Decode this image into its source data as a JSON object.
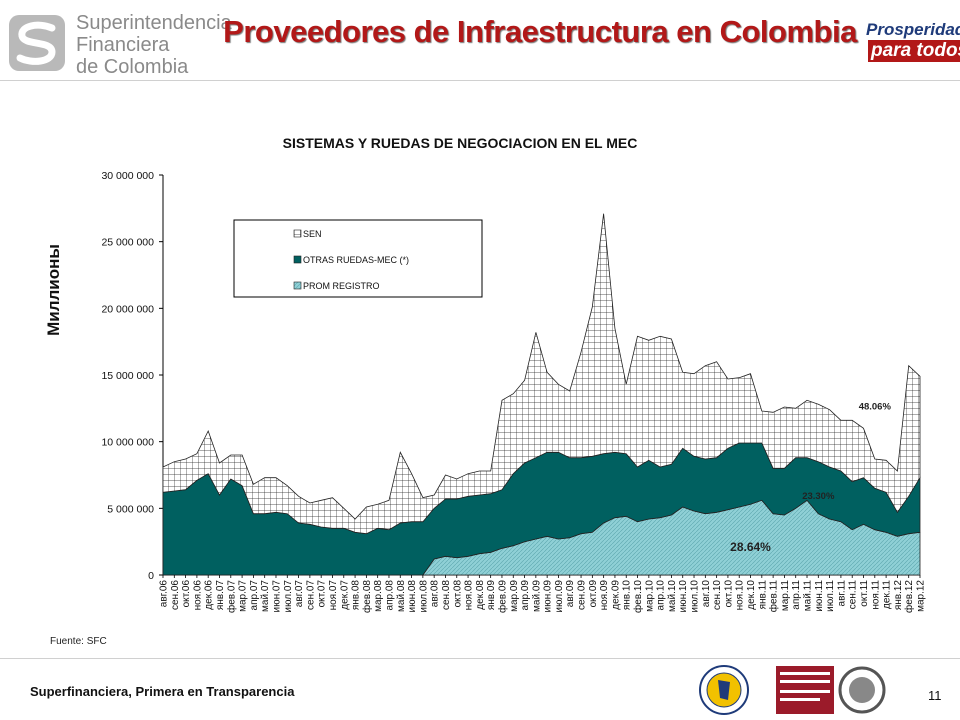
{
  "header": {
    "logo_lines": [
      "Superintendencia",
      "Financiera",
      "de Colombia"
    ],
    "title": "Proveedores de Infraestructura en Colombia",
    "right_logo_line1": "Prosperidad",
    "right_logo_line2": "para todos"
  },
  "footer": {
    "source": "Fuente: SFC",
    "tagline": "Superfinanciera, Primera en Transparencia",
    "page": "11"
  },
  "colors": {
    "title_red": "#b21818",
    "sen_bg": "#ffffff",
    "otras_fill": "#006060",
    "prom_fill": "#a8d8dc"
  },
  "chart_data": {
    "type": "area",
    "title": "SISTEMAS Y RUEDAS DE NEGOCIACION EN EL MEC",
    "ylabel": "Миллионы",
    "ylim": [
      0,
      30000000
    ],
    "yticks": [
      "0",
      "5 000 000",
      "10 000 000",
      "15 000 000",
      "20 000 000",
      "25 000 000",
      "30 000 000"
    ],
    "stacked": true,
    "legend_position": "top-left",
    "grid": false,
    "categories": [
      "авг.06",
      "сен.06",
      "окт.06",
      "ноя.06",
      "дек.06",
      "янв.07",
      "фев.07",
      "мар.07",
      "апр.07",
      "май.07",
      "июн.07",
      "июл.07",
      "авг.07",
      "сен.07",
      "окт.07",
      "ноя.07",
      "дек.07",
      "янв.08",
      "фев.08",
      "мар.08",
      "апр.08",
      "май.08",
      "июн.08",
      "июл.08",
      "авг.08",
      "сен.08",
      "окт.08",
      "ноя.08",
      "дек.08",
      "янв.09",
      "фев.09",
      "мар.09",
      "апр.09",
      "май.09",
      "июн.09",
      "июл.09",
      "авг.09",
      "сен.09",
      "окт.09",
      "ноя.09",
      "дек.09",
      "янв.10",
      "фев.10",
      "мар.10",
      "апр.10",
      "май.10",
      "июн.10",
      "июл.10",
      "авг.10",
      "сен.10",
      "окт.10",
      "ноя.10",
      "дек.10",
      "янв.11",
      "фев.11",
      "мар.11",
      "апр.11",
      "май.11",
      "июн.11",
      "июл.11",
      "авг.11",
      "сен.11",
      "окт.11",
      "ноя.11",
      "дек.11",
      "янв.12",
      "фев.12",
      "мар.12"
    ],
    "series": [
      {
        "name": "PROM REGISTRO",
        "values": [
          0,
          0,
          0,
          0,
          0,
          0,
          0,
          0,
          0,
          0,
          0,
          0,
          0,
          0,
          0,
          0,
          0,
          0,
          0,
          0,
          0,
          0,
          0,
          0,
          1200000,
          1400000,
          1300000,
          1400000,
          1600000,
          1700000,
          2000000,
          2200000,
          2500000,
          2700000,
          2900000,
          2700000,
          2800000,
          3100000,
          3200000,
          3900000,
          4300000,
          4400000,
          4000000,
          4200000,
          4300000,
          4500000,
          5100000,
          4800000,
          4600000,
          4700000,
          4900000,
          5100000,
          5300000,
          5600000,
          4600000,
          4500000,
          5000000,
          5600000,
          4600000,
          4200000,
          4000000,
          3400000,
          3800000,
          3400000,
          3200000,
          2900000,
          3100000,
          3200000
        ]
      },
      {
        "name": "OTRAS RUEDAS-MEC (*)",
        "values": [
          6200000,
          6300000,
          6400000,
          7100000,
          7600000,
          6000000,
          7200000,
          6700000,
          4600000,
          4600000,
          4700000,
          4600000,
          3900000,
          3800000,
          3600000,
          3500000,
          3500000,
          3200000,
          3100000,
          3500000,
          3400000,
          3900000,
          4000000,
          4000000,
          3800000,
          4300000,
          4400000,
          4500000,
          4400000,
          4400000,
          4400000,
          5400000,
          5900000,
          6100000,
          6300000,
          6500000,
          6000000,
          5700000,
          5700000,
          5200000,
          4900000,
          4700000,
          4100000,
          4400000,
          3800000,
          3800000,
          4400000,
          4100000,
          4100000,
          4100000,
          4600000,
          4800000,
          4600000,
          4300000,
          3400000,
          3500000,
          3800000,
          3200000,
          3900000,
          3900000,
          3800000,
          3600000,
          3500000,
          3100000,
          3000000,
          1800000,
          2800000,
          4100000
        ]
      },
      {
        "name": "SEN",
        "values": [
          1900000,
          2200000,
          2300000,
          2000000,
          3200000,
          2400000,
          1800000,
          2300000,
          2200000,
          2700000,
          2600000,
          2100000,
          2000000,
          1600000,
          2000000,
          2300000,
          1500000,
          1000000,
          2000000,
          1800000,
          2200000,
          5300000,
          3600000,
          1800000,
          1000000,
          1800000,
          1500000,
          1700000,
          1800000,
          1700000,
          6700000,
          6000000,
          6200000,
          9400000,
          6000000,
          5100000,
          5000000,
          7900000,
          11200000,
          18000000,
          9300000,
          5200000,
          9800000,
          9000000,
          9800000,
          9400000,
          5700000,
          6200000,
          7000000,
          7200000,
          5200000,
          4900000,
          5200000,
          2400000,
          4200000,
          4600000,
          3700000,
          4300000,
          4300000,
          4300000,
          3800000,
          4600000,
          3700000,
          2200000,
          2400000,
          3100000,
          9800000,
          7600000
        ]
      }
    ],
    "annotations": [
      {
        "text": "48.06%",
        "x": "ноя.11",
        "y": 12700000
      },
      {
        "text": "23.30%",
        "x": "июн.11",
        "y": 6000000
      },
      {
        "text": "28.64%",
        "x": "дек.10",
        "y": 2100000
      }
    ]
  }
}
